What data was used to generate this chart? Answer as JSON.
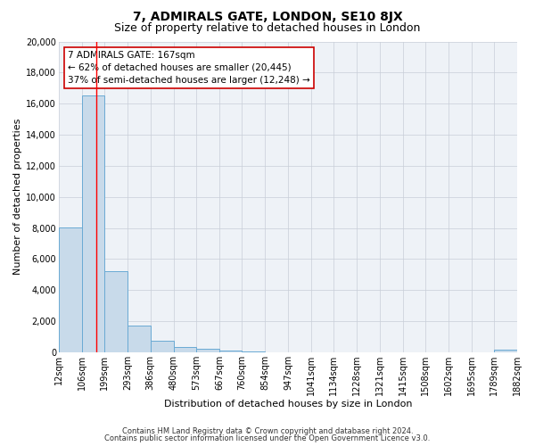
{
  "title": "7, ADMIRALS GATE, LONDON, SE10 8JX",
  "subtitle": "Size of property relative to detached houses in London",
  "xlabel": "Distribution of detached houses by size in London",
  "ylabel": "Number of detached properties",
  "footnote1": "Contains HM Land Registry data © Crown copyright and database right 2024.",
  "footnote2": "Contains public sector information licensed under the Open Government Licence v3.0.",
  "annotation_title": "7 ADMIRALS GATE: 167sqm",
  "annotation_line1": "← 62% of detached houses are smaller (20,445)",
  "annotation_line2": "37% of semi-detached houses are larger (12,248) →",
  "bar_color": "#c8daea",
  "bar_edge_color": "#6aaad4",
  "redline_x": 167,
  "bin_edges": [
    12,
    106,
    199,
    293,
    386,
    480,
    573,
    667,
    760,
    854,
    947,
    1041,
    1134,
    1228,
    1321,
    1415,
    1508,
    1602,
    1695,
    1789,
    1882
  ],
  "bar_heights": [
    8050,
    16500,
    5200,
    1750,
    750,
    350,
    260,
    100,
    50,
    0,
    0,
    0,
    0,
    0,
    0,
    0,
    0,
    0,
    0,
    150
  ],
  "ylim": [
    0,
    20000
  ],
  "yticks": [
    0,
    2000,
    4000,
    6000,
    8000,
    10000,
    12000,
    14000,
    16000,
    18000,
    20000
  ],
  "fig_bg": "#ffffff",
  "plot_bg": "#eef2f7",
  "grid_color": "#c8ced8",
  "title_fontsize": 10,
  "subtitle_fontsize": 9,
  "axis_label_fontsize": 8,
  "tick_fontsize": 7,
  "annotation_fontsize": 7.5
}
